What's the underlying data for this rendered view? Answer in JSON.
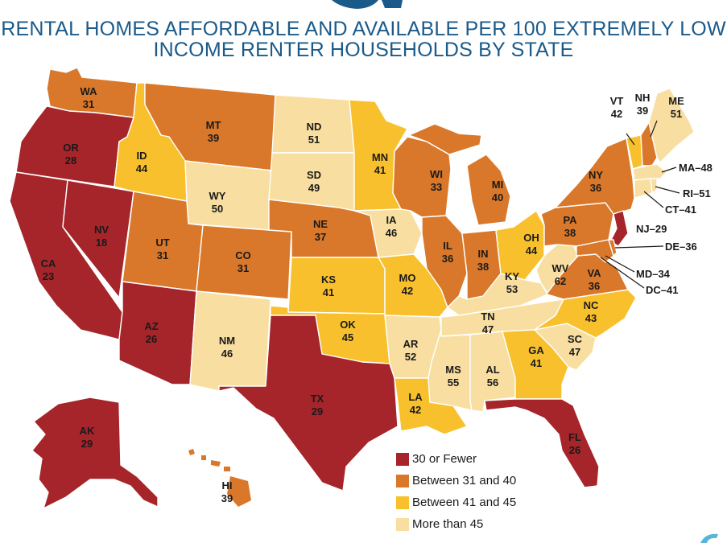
{
  "title": {
    "line1": "RENTAL HOMES AFFORDABLE AND AVAILABLE PER 100 EXTREMELY LOW",
    "line2": "INCOME RENTER HOUSEHOLDS BY STATE"
  },
  "colors": {
    "c30": "#a5252a",
    "c31": "#d9782a",
    "c41": "#f8c02c",
    "c45": "#f8dea0",
    "title": "#1a5a8a",
    "logo": "#1a5a8a"
  },
  "legend": [
    {
      "label": "30 or Fewer",
      "color": "#a5252a"
    },
    {
      "label": "Between 31 and 40",
      "color": "#d9782a"
    },
    {
      "label": "Between 41 and 45",
      "color": "#f8c02c"
    },
    {
      "label": "More than 45",
      "color": "#f8dea0"
    }
  ],
  "states": {
    "WA": {
      "name": "WA",
      "value": "31"
    },
    "OR": {
      "name": "OR",
      "value": "28"
    },
    "CA": {
      "name": "CA",
      "value": "23"
    },
    "NV": {
      "name": "NV",
      "value": "18"
    },
    "ID": {
      "name": "ID",
      "value": "44"
    },
    "MT": {
      "name": "MT",
      "value": "39"
    },
    "WY": {
      "name": "WY",
      "value": "50"
    },
    "UT": {
      "name": "UT",
      "value": "31"
    },
    "AZ": {
      "name": "AZ",
      "value": "26"
    },
    "CO": {
      "name": "CO",
      "value": "31"
    },
    "NM": {
      "name": "NM",
      "value": "46"
    },
    "ND": {
      "name": "ND",
      "value": "51"
    },
    "SD": {
      "name": "SD",
      "value": "49"
    },
    "NE": {
      "name": "NE",
      "value": "37"
    },
    "KS": {
      "name": "KS",
      "value": "41"
    },
    "OK": {
      "name": "OK",
      "value": "45"
    },
    "TX": {
      "name": "TX",
      "value": "29"
    },
    "MN": {
      "name": "MN",
      "value": "41"
    },
    "IA": {
      "name": "IA",
      "value": "46"
    },
    "MO": {
      "name": "MO",
      "value": "42"
    },
    "AR": {
      "name": "AR",
      "value": "52"
    },
    "LA": {
      "name": "LA",
      "value": "42"
    },
    "WI": {
      "name": "WI",
      "value": "33"
    },
    "IL": {
      "name": "IL",
      "value": "36"
    },
    "MI": {
      "name": "MI",
      "value": "40"
    },
    "IN": {
      "name": "IN",
      "value": "38"
    },
    "OH": {
      "name": "OH",
      "value": "44"
    },
    "KY": {
      "name": "KY",
      "value": "53"
    },
    "TN": {
      "name": "TN",
      "value": "47"
    },
    "MS": {
      "name": "MS",
      "value": "55"
    },
    "AL": {
      "name": "AL",
      "value": "56"
    },
    "GA": {
      "name": "GA",
      "value": "41"
    },
    "FL": {
      "name": "FL",
      "value": "26"
    },
    "SC": {
      "name": "SC",
      "value": "47"
    },
    "NC": {
      "name": "NC",
      "value": "43"
    },
    "VA": {
      "name": "VA",
      "value": "36"
    },
    "WV": {
      "name": "WV",
      "value": "62"
    },
    "PA": {
      "name": "PA",
      "value": "38"
    },
    "NY": {
      "name": "NY",
      "value": "36"
    },
    "VT": {
      "name": "VT",
      "value": "42"
    },
    "NH": {
      "name": "NH",
      "value": "39"
    },
    "ME": {
      "name": "ME",
      "value": "51"
    },
    "AK": {
      "name": "AK",
      "value": "29"
    },
    "HI": {
      "name": "HI",
      "value": "39"
    }
  },
  "east_labels": {
    "MA": "MA–48",
    "RI": "RI–51",
    "CT": "CT–41",
    "NJ": "NJ–29",
    "DE": "DE–36",
    "MD": "MD–34",
    "DC": "DC–41"
  }
}
